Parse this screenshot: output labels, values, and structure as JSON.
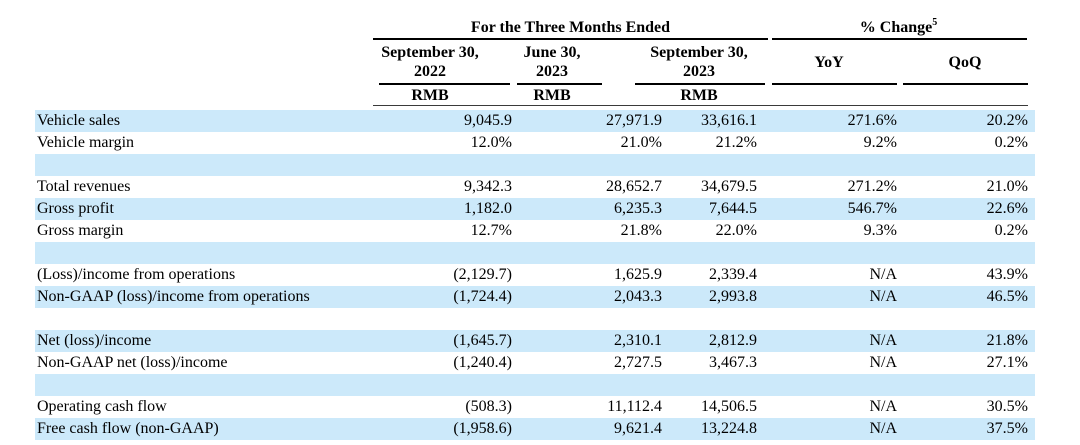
{
  "page": {
    "background_color": "#ffffff",
    "highlight_color": "#cce9fa"
  },
  "table": {
    "groups": [
      {
        "label": "For the Three Months Ended",
        "sup": ""
      },
      {
        "label": "% Change",
        "sup": "5"
      }
    ],
    "columns": [
      {
        "line1": "September 30,",
        "line2": "2022",
        "unit": "RMB"
      },
      {
        "line1": "June 30,",
        "line2": "2023",
        "unit": "RMB"
      },
      {
        "line1": "September 30,",
        "line2": "2023",
        "unit": "RMB"
      },
      {
        "line1": "YoY",
        "line2": "",
        "unit": ""
      },
      {
        "line1": "QoQ",
        "line2": "",
        "unit": ""
      }
    ],
    "rows": [
      {
        "label": "Vehicle sales",
        "values": [
          "9,045.9",
          "27,971.9",
          "33,616.1",
          "271.6%",
          "20.2%"
        ]
      },
      {
        "label": "Vehicle margin",
        "values": [
          "12.0%",
          "21.0%",
          "21.2%",
          "9.2%",
          "0.2%"
        ]
      },
      {
        "label": "",
        "values": [
          "",
          "",
          "",
          "",
          ""
        ]
      },
      {
        "label": "Total revenues",
        "values": [
          "9,342.3",
          "28,652.7",
          "34,679.5",
          "271.2%",
          "21.0%"
        ]
      },
      {
        "label": "Gross profit",
        "values": [
          "1,182.0",
          "6,235.3",
          "7,644.5",
          "546.7%",
          "22.6%"
        ]
      },
      {
        "label": "Gross margin",
        "values": [
          "12.7%",
          "21.8%",
          "22.0%",
          "9.3%",
          "0.2%"
        ]
      },
      {
        "label": "",
        "values": [
          "",
          "",
          "",
          "",
          ""
        ]
      },
      {
        "label": "(Loss)/income from operations",
        "values": [
          "(2,129.7)",
          "1,625.9",
          "2,339.4",
          "N/A",
          "43.9%"
        ]
      },
      {
        "label": "Non-GAAP (loss)/income from operations",
        "values": [
          "(1,724.4)",
          "2,043.3",
          "2,993.8",
          "N/A",
          "46.5%"
        ]
      },
      {
        "label": "",
        "values": [
          "",
          "",
          "",
          "",
          ""
        ]
      },
      {
        "label": "Net (loss)/income",
        "values": [
          "(1,645.7)",
          "2,310.1",
          "2,812.9",
          "N/A",
          "21.8%"
        ]
      },
      {
        "label": "Non-GAAP net (loss)/income",
        "values": [
          "(1,240.4)",
          "2,727.5",
          "3,467.3",
          "N/A",
          "27.1%"
        ]
      },
      {
        "label": "",
        "values": [
          "",
          "",
          "",
          "",
          ""
        ]
      },
      {
        "label": "Operating cash flow",
        "values": [
          "(508.3)",
          "11,112.4",
          "14,506.5",
          "N/A",
          "30.5%"
        ]
      },
      {
        "label": "Free cash flow (non-GAAP)",
        "values": [
          "(1,958.6)",
          "9,621.4",
          "13,224.8",
          "N/A",
          "37.5%"
        ]
      }
    ]
  }
}
